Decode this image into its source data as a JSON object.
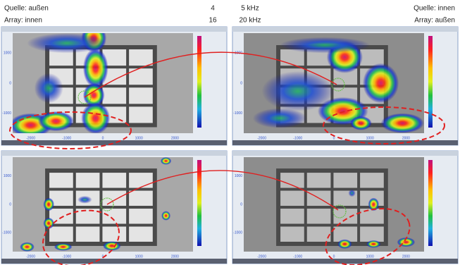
{
  "header": {
    "left": {
      "source": "Quelle: außen",
      "array": "Array: innen"
    },
    "middle": {
      "rows": [
        [
          "4",
          "5 kHz"
        ],
        [
          "16",
          "20 kHz"
        ]
      ]
    },
    "right": {
      "source": "Quelle: innen",
      "array": "Array: außen"
    }
  },
  "panels": [
    {
      "x_ticks": [
        "-2000",
        "-1000",
        "0",
        "1000",
        "2000"
      ],
      "y_ticks": [
        "1000",
        "0",
        "-1000"
      ]
    },
    {
      "x_ticks": [
        "-2000",
        "-1000",
        "0",
        "1000",
        "2000"
      ],
      "y_ticks": [
        "1000",
        "0",
        "-1000"
      ]
    },
    {
      "x_ticks": [
        "-2000",
        "-1000",
        "0",
        "1000",
        "2000"
      ],
      "y_ticks": [
        "1000",
        "0",
        "-1000"
      ]
    },
    {
      "x_ticks": [
        "-2000",
        "-1000",
        "0",
        "1000",
        "2000"
      ],
      "y_ticks": [
        "1000",
        "0",
        "-1000"
      ]
    }
  ]
}
